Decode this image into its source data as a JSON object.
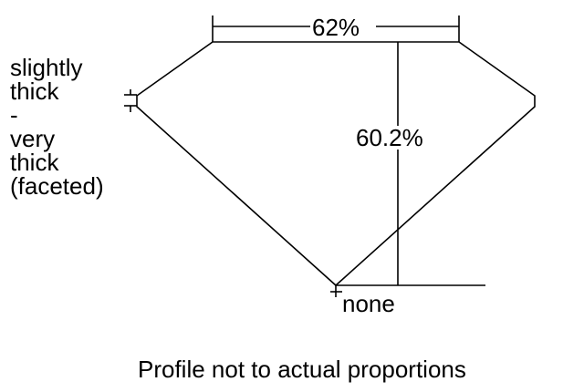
{
  "table_label": "62%",
  "depth_label": "60.2%",
  "culet_label": "none",
  "girdle_label": [
    "slightly",
    "thick",
    "-",
    "very",
    "thick",
    "(faceted)"
  ],
  "caption": "Profile not to actual proportions"
}
